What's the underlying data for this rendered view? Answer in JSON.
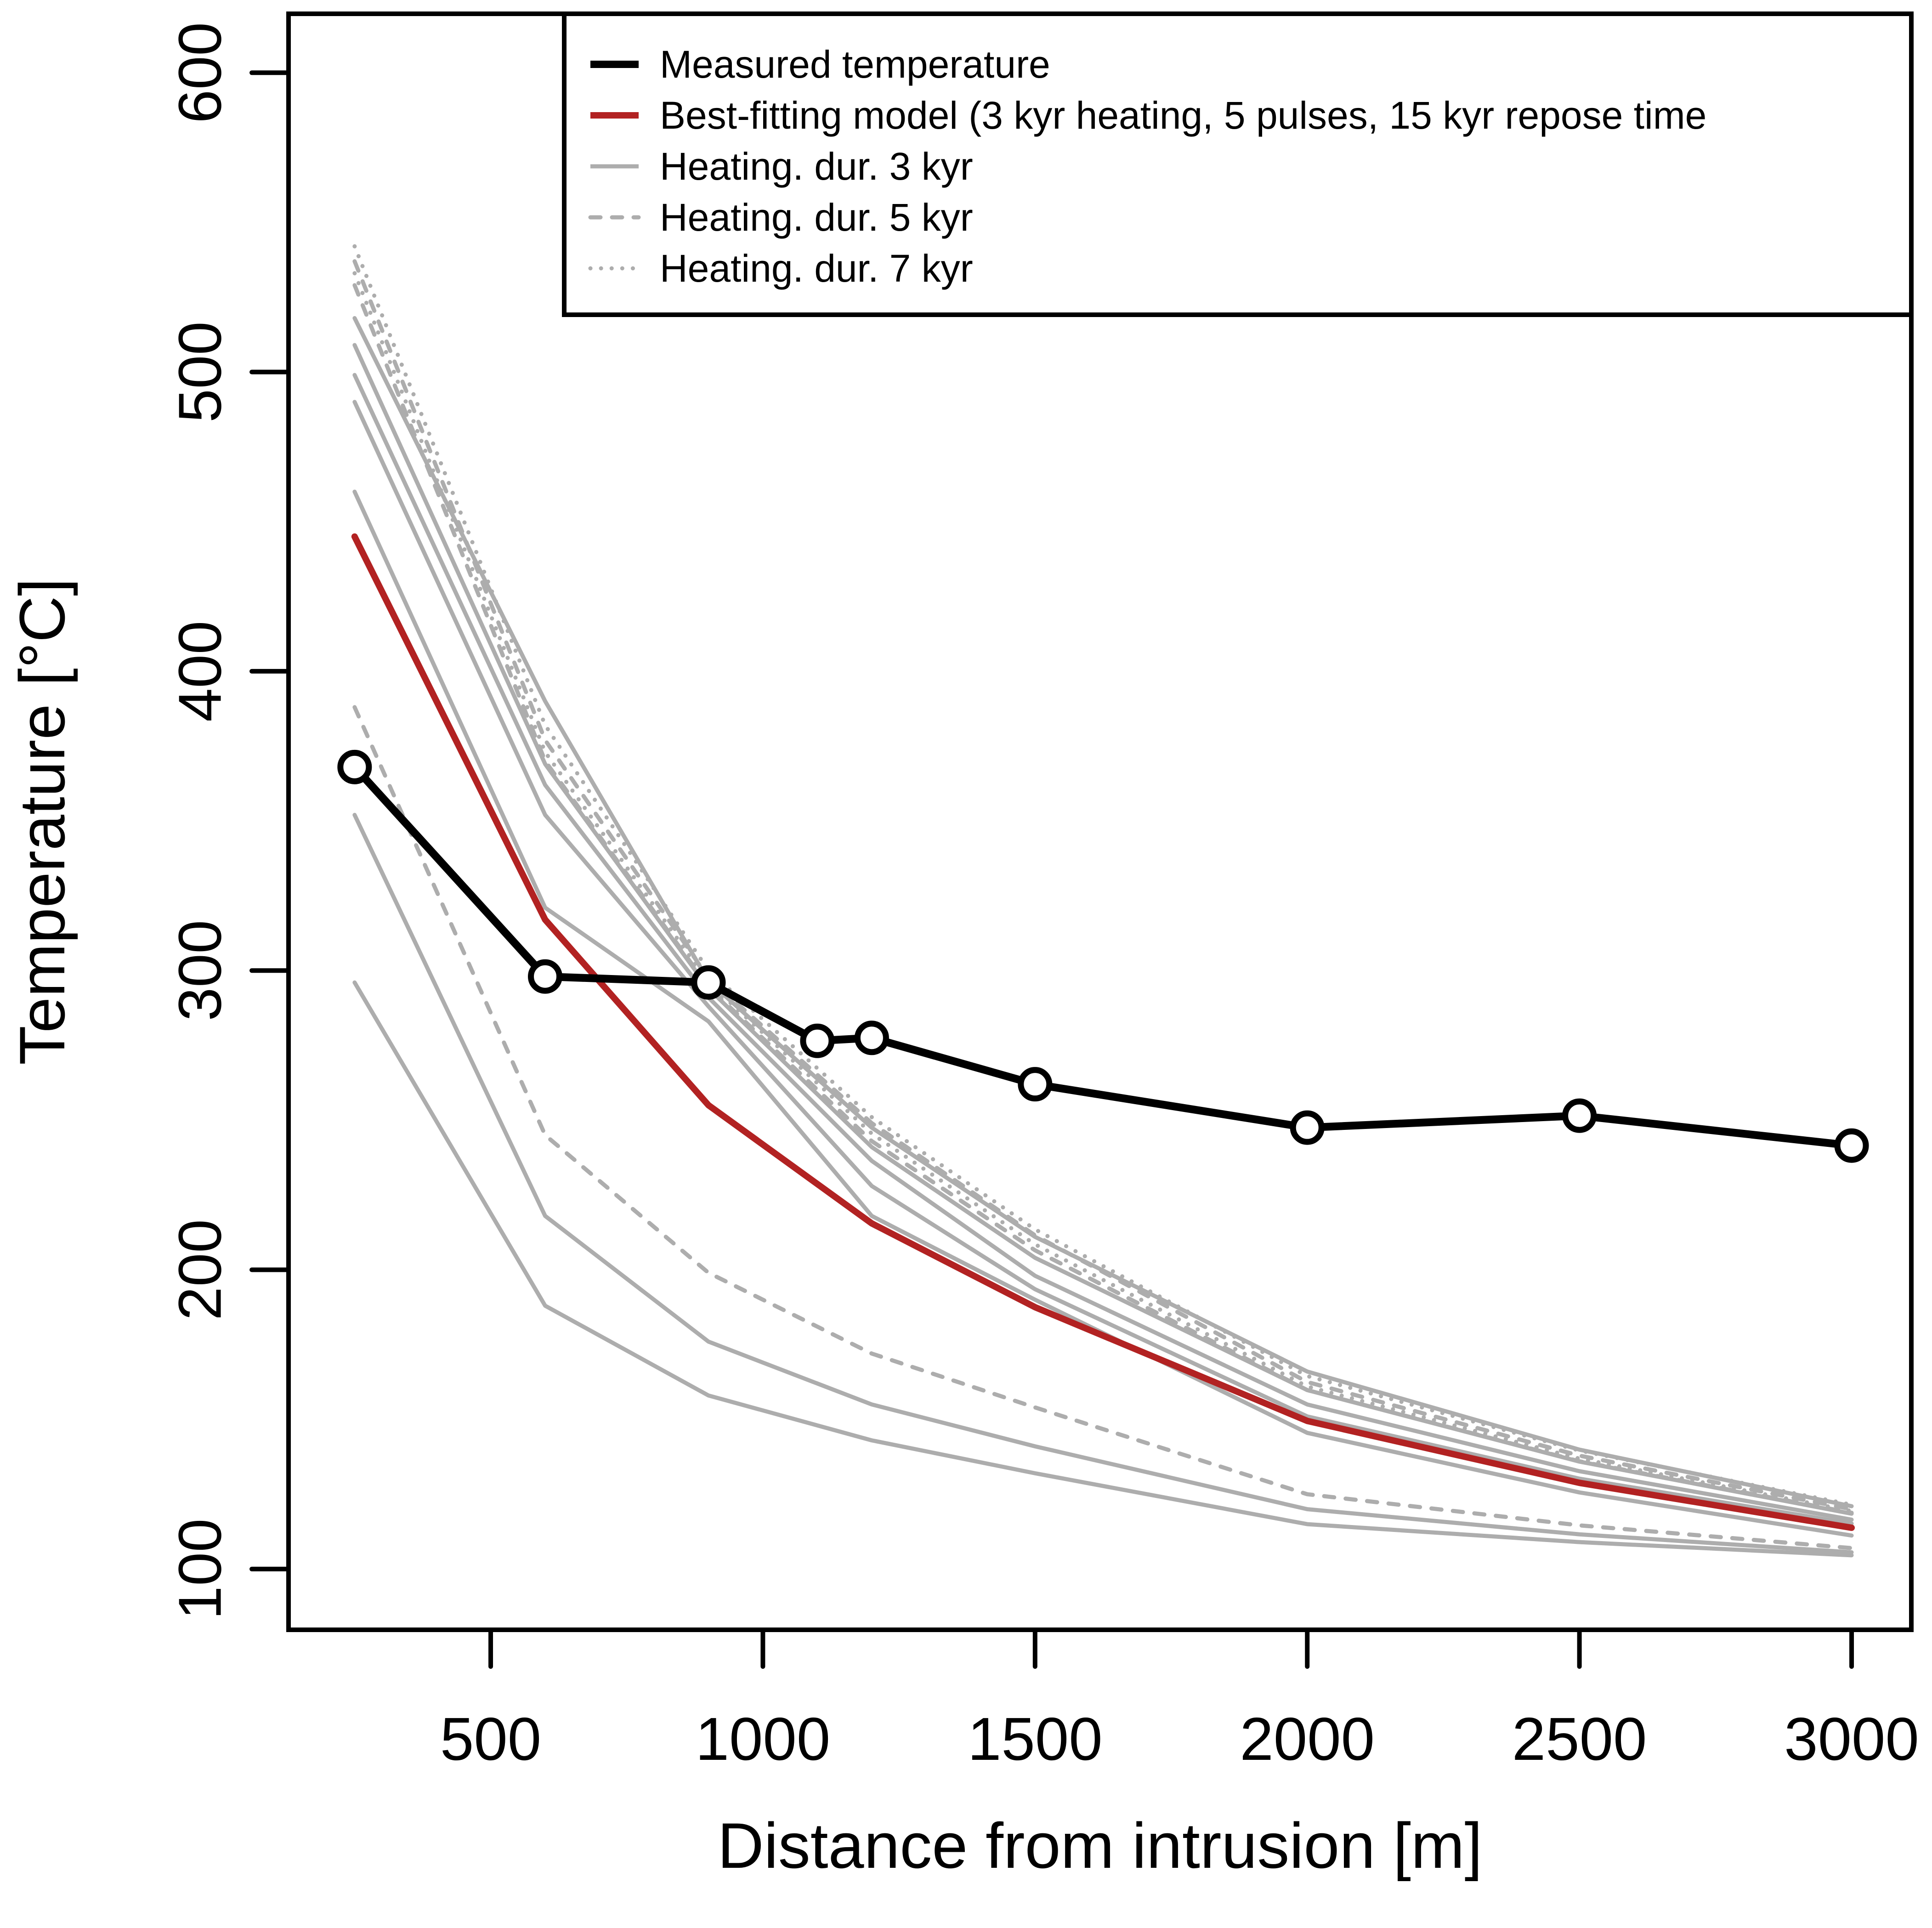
{
  "chart_data": {
    "type": "line",
    "xlabel": "Distance from intrusion [m]",
    "ylabel": "Temperature [°C]",
    "xlim": [
      128.6,
      3109.7
    ],
    "ylim": [
      79.7,
      619.7
    ],
    "x_ticks": [
      500,
      1000,
      1500,
      2000,
      2500,
      3000
    ],
    "y_ticks": [
      100,
      200,
      300,
      400,
      500,
      600
    ],
    "grid": false,
    "legend_position": "top-right-inside",
    "colors": {
      "measured": "#000000",
      "best_fit": "#B22222",
      "model_gray": "#ADADAD"
    },
    "legend": [
      {
        "label": "Measured temperature",
        "style": "measured"
      },
      {
        "label": "Best-fitting model (3 kyr heating, 5 pulses, 15 kyr repose time",
        "style": "best_fit"
      },
      {
        "label": "Heating. dur. 3 kyr",
        "style": "solid"
      },
      {
        "label": "Heating. dur. 5 kyr",
        "style": "dashed"
      },
      {
        "label": "Heating. dur. 7 kyr",
        "style": "dotted"
      }
    ],
    "measured": {
      "x": [
        250,
        600,
        900,
        1100,
        1200,
        1500,
        2000,
        2500,
        3000
      ],
      "y": [
        368,
        298,
        296,
        276.5,
        277.5,
        262,
        247.5,
        251.5,
        241.5
      ]
    },
    "model_x": [
      250,
      600,
      900,
      1200,
      1500,
      2000,
      2500,
      3000
    ],
    "series": [
      {
        "name": "heat3_a",
        "style": "solid",
        "values": [
          518,
          390,
          296.5,
          247.5,
          211,
          166,
          139.9,
          121
        ]
      },
      {
        "name": "heat3_b",
        "style": "solid",
        "values": [
          509,
          369,
          294,
          241,
          204,
          159.8,
          135.9,
          118.5
        ]
      },
      {
        "name": "heat3_c",
        "style": "solid",
        "values": [
          499,
          362,
          291,
          236.4,
          198,
          155,
          132.7,
          116.5
        ]
      },
      {
        "name": "heat3_d",
        "style": "solid",
        "values": [
          490,
          352,
          288,
          228,
          193.5,
          151,
          130.2,
          115.2
        ]
      },
      {
        "name": "heat3_e",
        "style": "solid",
        "values": [
          460,
          321,
          283,
          218,
          190,
          145.5,
          125.6,
          111.2
        ]
      },
      {
        "name": "heat3_f",
        "style": "solid",
        "values": [
          352,
          218,
          176,
          155,
          141,
          120,
          111.6,
          105.6
        ]
      },
      {
        "name": "heat3_g",
        "style": "solid",
        "values": [
          296,
          188,
          158,
          143,
          132,
          115,
          109,
          104.6
        ]
      },
      {
        "name": "heat5_a",
        "style": "dashed",
        "values": [
          537,
          377,
          297.5,
          249,
          211.5,
          162.5,
          137.9,
          120
        ]
      },
      {
        "name": "heat5_b",
        "style": "dashed",
        "values": [
          529,
          370,
          294.5,
          243,
          206.5,
          159.8,
          136,
          118.8
        ]
      },
      {
        "name": "heat5_c",
        "style": "dashed",
        "values": [
          388,
          245,
          199,
          172,
          154,
          125,
          114.6,
          107
        ]
      },
      {
        "name": "heat7_a",
        "style": "dotted",
        "values": [
          542,
          382,
          300,
          251,
          213.5,
          164.5,
          139.6,
          121.5
        ]
      },
      {
        "name": "heat7_b",
        "style": "dotted",
        "values": [
          533,
          373,
          296,
          245.5,
          208.5,
          161,
          136.9,
          119.4
        ]
      },
      {
        "name": "best_fit",
        "style": "best_fit",
        "values": [
          445,
          317,
          255,
          215.5,
          187.5,
          149.5,
          128.8,
          113.8
        ]
      }
    ]
  }
}
